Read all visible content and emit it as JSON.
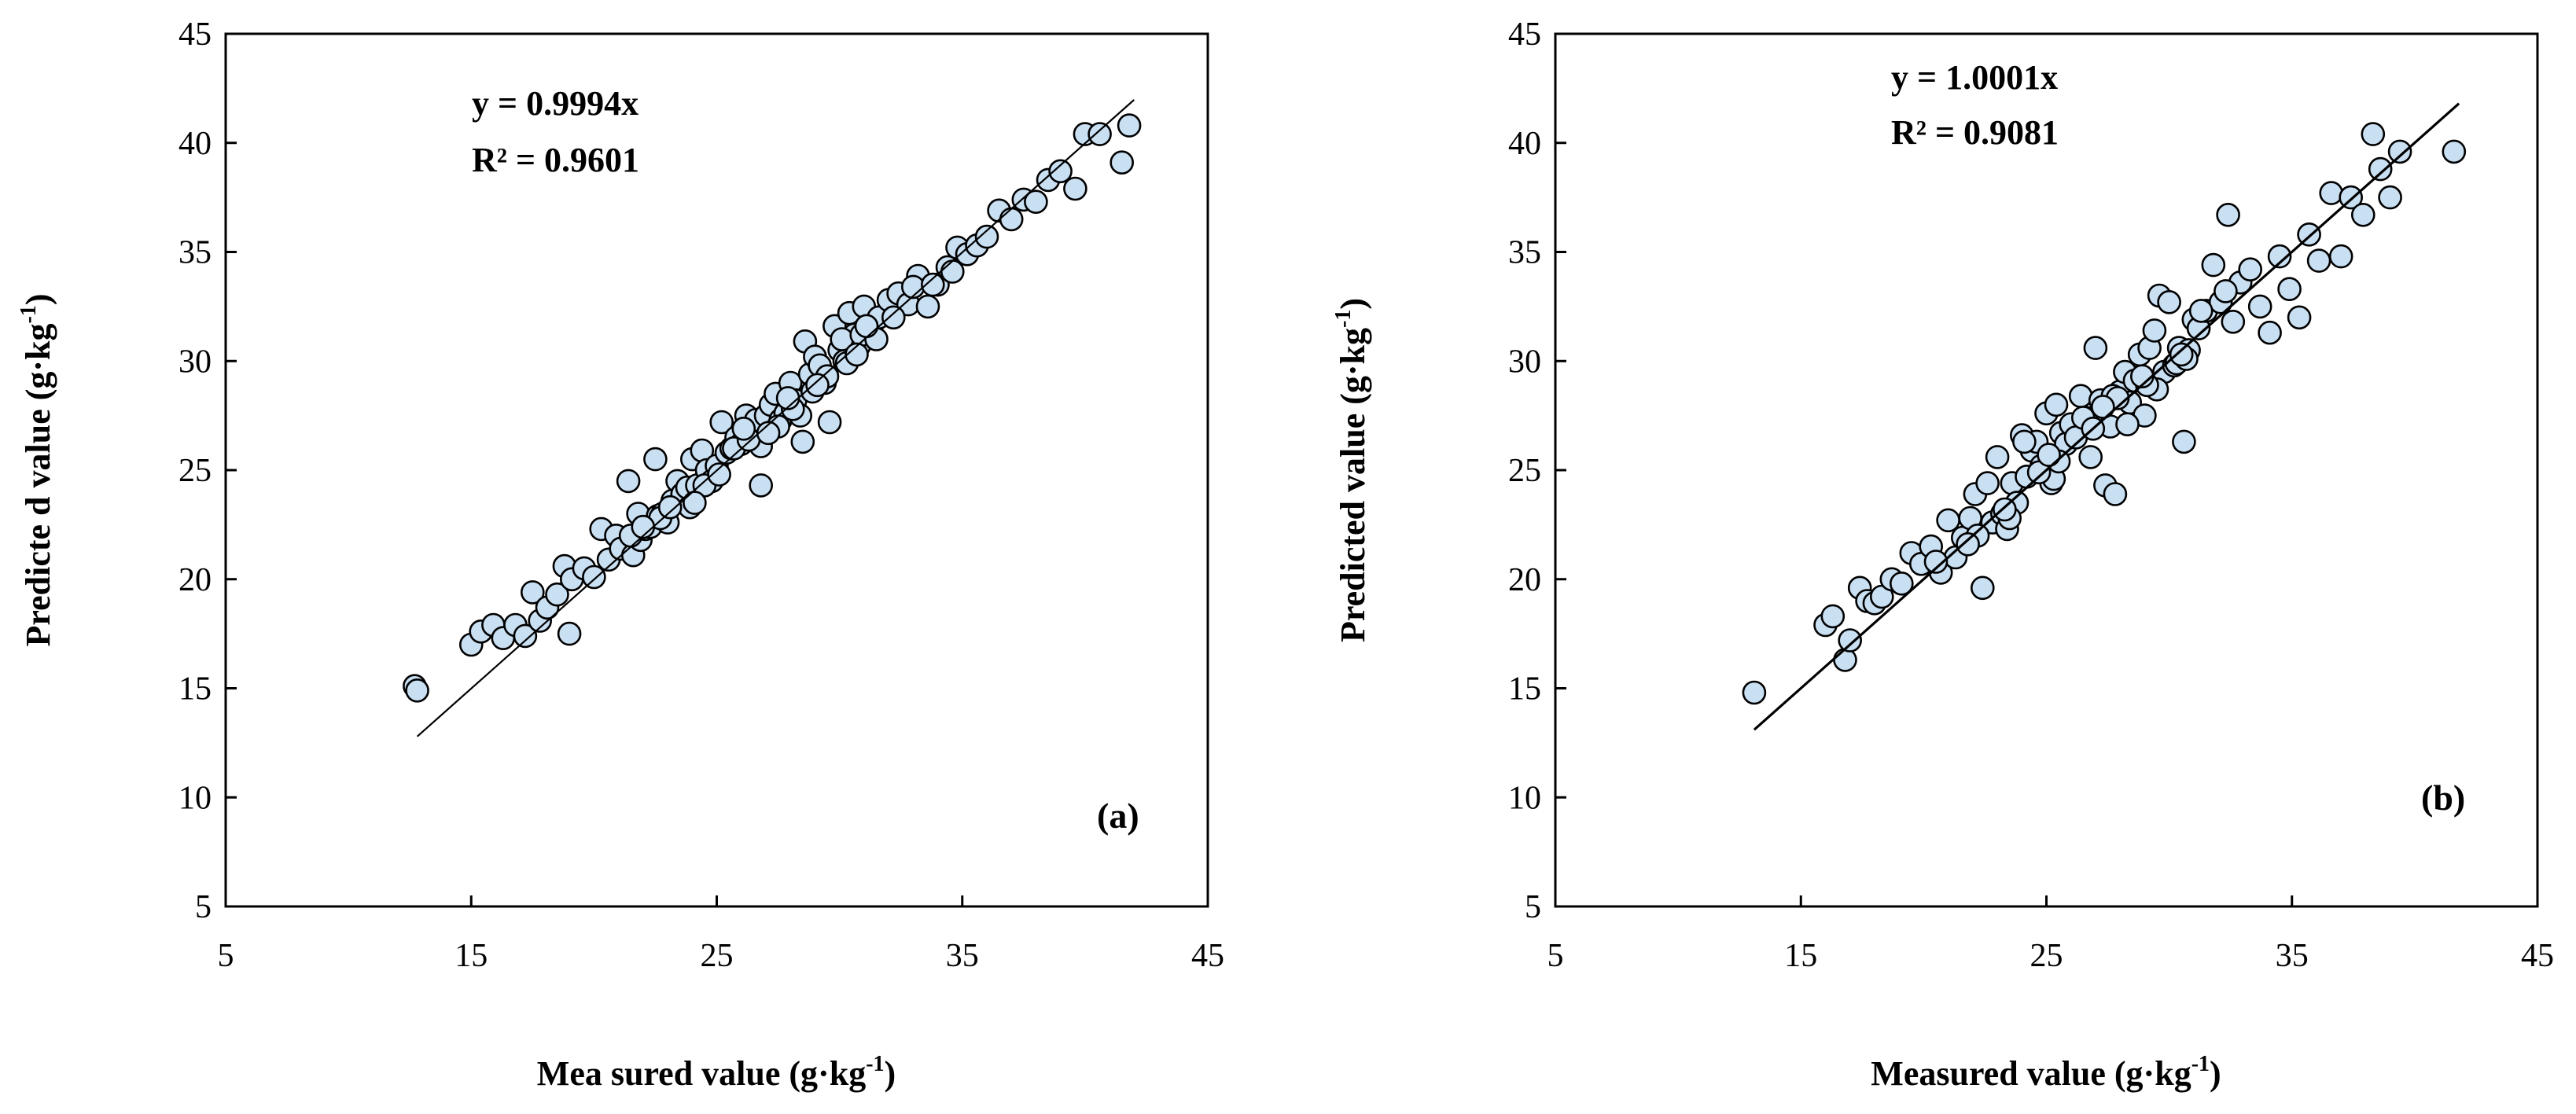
{
  "chart_data": [
    {
      "type": "scatter",
      "panel_label": "(a)",
      "equation": "y = 0.9994x",
      "r_squared": "R² = 0.9601",
      "slope": 0.9994,
      "fit_range": [
        12.8,
        42
      ],
      "xlabel_main": "Mea sured value  (g·kg",
      "xlabel_sup": "-1",
      "xlabel_close": ")",
      "ylabel_main": "Predicte d value  (g·kg",
      "ylabel_sup": "-1",
      "ylabel_close": ")",
      "xlim": [
        5,
        45
      ],
      "ylim": [
        5,
        45
      ],
      "xticks": [
        "5",
        "15",
        "25",
        "35",
        "45"
      ],
      "yticks": [
        "5",
        "10",
        "15",
        "20",
        "25",
        "30",
        "35",
        "40",
        "45"
      ],
      "marker_color": "#c9dff2",
      "x": [
        12.7,
        12.8,
        15.0,
        15.4,
        15.9,
        16.3,
        16.8,
        17.2,
        17.5,
        17.8,
        18.1,
        18.5,
        18.8,
        19.0,
        19.1,
        19.6,
        20.0,
        20.3,
        20.6,
        20.9,
        21.1,
        21.4,
        21.6,
        21.8,
        21.9,
        22.1,
        22.3,
        22.5,
        22.6,
        22.8,
        23.0,
        23.2,
        23.4,
        23.6,
        23.8,
        24.0,
        24.2,
        24.4,
        24.6,
        24.8,
        25.0,
        25.2,
        25.4,
        25.6,
        25.8,
        26.0,
        26.2,
        26.4,
        26.6,
        26.8,
        26.8,
        27.0,
        27.2,
        27.4,
        27.6,
        27.8,
        28.0,
        28.2,
        28.4,
        28.5,
        28.6,
        28.8,
        29.0,
        29.2,
        29.4,
        29.6,
        29.8,
        30.0,
        30.2,
        30.4,
        30.6,
        30.8,
        31.0,
        31.3,
        31.6,
        32.0,
        32.4,
        32.8,
        33.2,
        33.6,
        34.0,
        34.4,
        34.8,
        35.2,
        35.6,
        36.0,
        36.5,
        37.0,
        37.5,
        38.0,
        38.5,
        39.0,
        39.6,
        40.0,
        40.6,
        41.5,
        41.8,
        21.5,
        22.7,
        23.9,
        24.5,
        25.7,
        26.3,
        27.5,
        28.9,
        29.5,
        30.1,
        30.9,
        31.5,
        32.2,
        33.0,
        33.8,
        34.6,
        24.1,
        25.1,
        26.1,
        27.1,
        28.1,
        29.1,
        30.3,
        31.1,
        22.0,
        23.1,
        27.9,
        30.7
      ],
      "y": [
        15.1,
        14.9,
        17.0,
        17.6,
        17.9,
        17.3,
        17.9,
        17.4,
        19.4,
        18.1,
        18.7,
        19.3,
        20.6,
        17.5,
        20.0,
        20.5,
        20.1,
        22.3,
        20.9,
        22.0,
        21.4,
        24.5,
        21.1,
        23.0,
        21.8,
        22.3,
        22.4,
        25.5,
        22.9,
        23.0,
        22.6,
        23.6,
        24.5,
        23.9,
        24.2,
        25.5,
        24.3,
        25.9,
        25.0,
        24.5,
        25.2,
        27.2,
        25.8,
        26.0,
        26.5,
        26.2,
        27.5,
        26.9,
        27.3,
        26.1,
        24.3,
        27.5,
        28.0,
        28.5,
        27.3,
        27.6,
        29.0,
        28.2,
        27.5,
        26.3,
        30.9,
        29.4,
        30.2,
        29.8,
        29.0,
        27.2,
        31.6,
        30.5,
        30.0,
        32.2,
        31.2,
        30.7,
        32.5,
        31.5,
        32.0,
        32.8,
        33.1,
        32.6,
        33.9,
        32.5,
        33.5,
        34.3,
        35.2,
        34.9,
        35.3,
        35.7,
        36.9,
        36.5,
        37.4,
        37.3,
        38.3,
        38.7,
        37.9,
        40.4,
        40.4,
        39.1,
        40.8,
        22.0,
        22.8,
        23.3,
        24.3,
        26.0,
        26.4,
        27.0,
        28.6,
        29.3,
        31.0,
        31.2,
        31.0,
        32.0,
        33.4,
        33.5,
        34.1,
        23.5,
        24.8,
        26.9,
        26.7,
        27.8,
        28.9,
        29.9,
        31.6,
        22.4,
        23.3,
        28.3,
        30.3
      ]
    },
    {
      "type": "scatter",
      "panel_label": "(b)",
      "equation": "y = 1.0001x",
      "r_squared": "R² = 0.9081",
      "slope": 1.0001,
      "fit_range": [
        13.1,
        41.8
      ],
      "xlabel_main": "Measured value (g·kg",
      "xlabel_sup": "-1",
      "xlabel_close": ")",
      "ylabel_main": "Predicted value (g·kg",
      "ylabel_sup": "-1",
      "ylabel_close": ")",
      "xlim": [
        5,
        45
      ],
      "ylim": [
        5,
        45
      ],
      "xticks": [
        "5",
        "15",
        "25",
        "35",
        "45"
      ],
      "yticks": [
        "5",
        "10",
        "15",
        "20",
        "25",
        "30",
        "35",
        "40",
        "45"
      ],
      "marker_color": "#c9dff2",
      "x": [
        13.1,
        16.0,
        16.3,
        16.8,
        17.0,
        17.4,
        17.7,
        18.0,
        18.3,
        18.7,
        19.1,
        19.5,
        19.9,
        20.3,
        20.7,
        21.0,
        21.3,
        21.6,
        21.9,
        22.1,
        22.4,
        22.6,
        22.8,
        23.0,
        23.2,
        23.4,
        23.6,
        23.8,
        24.0,
        24.2,
        24.4,
        24.6,
        24.8,
        25.0,
        25.2,
        25.4,
        25.6,
        25.8,
        26.0,
        26.2,
        26.4,
        26.6,
        26.8,
        27.0,
        27.2,
        27.4,
        27.6,
        27.8,
        28.0,
        28.2,
        28.4,
        28.6,
        28.8,
        29.0,
        29.2,
        29.4,
        29.6,
        29.8,
        30.0,
        30.2,
        30.4,
        30.6,
        30.8,
        31.0,
        31.2,
        31.5,
        31.8,
        32.1,
        32.4,
        32.6,
        32.9,
        33.3,
        33.7,
        34.1,
        34.5,
        34.9,
        35.3,
        35.7,
        36.1,
        36.6,
        37.0,
        37.4,
        37.9,
        38.3,
        38.6,
        39.0,
        39.4,
        41.6,
        22.2,
        23.5,
        24.1,
        25.3,
        26.5,
        27.7,
        28.3,
        29.5,
        30.3,
        31.3,
        32.3,
        20.5,
        21.8,
        23.3,
        24.7,
        25.5,
        26.9,
        27.9,
        29.1,
        30.7,
        27.3,
        30.5,
        25.1,
        28.9
      ],
      "y": [
        14.8,
        17.9,
        18.3,
        16.3,
        17.2,
        19.6,
        19.0,
        18.9,
        19.2,
        20.0,
        19.8,
        21.2,
        20.7,
        21.5,
        20.3,
        22.7,
        21.0,
        21.9,
        22.8,
        23.9,
        19.6,
        24.4,
        22.6,
        25.6,
        23.0,
        22.3,
        24.4,
        23.5,
        26.6,
        24.7,
        25.9,
        26.3,
        25.2,
        27.6,
        24.4,
        28.0,
        26.7,
        26.2,
        27.1,
        26.5,
        28.4,
        27.4,
        25.6,
        30.6,
        28.2,
        24.3,
        27.0,
        23.9,
        28.6,
        29.5,
        28.1,
        29.1,
        30.3,
        27.5,
        30.6,
        31.4,
        33.0,
        29.5,
        32.7,
        29.8,
        30.6,
        26.3,
        30.5,
        31.9,
        31.5,
        32.3,
        34.4,
        32.7,
        36.7,
        31.8,
        33.6,
        34.2,
        32.5,
        31.3,
        34.8,
        33.3,
        32.0,
        35.8,
        34.6,
        37.7,
        34.8,
        37.5,
        36.7,
        40.4,
        38.8,
        37.5,
        39.6,
        39.6,
        22.0,
        22.8,
        26.3,
        24.6,
        27.4,
        28.4,
        27.1,
        28.7,
        29.9,
        32.3,
        33.2,
        20.8,
        21.6,
        23.2,
        24.9,
        25.4,
        26.9,
        28.3,
        28.9,
        30.1,
        27.9,
        30.3,
        25.7,
        29.3
      ]
    }
  ]
}
